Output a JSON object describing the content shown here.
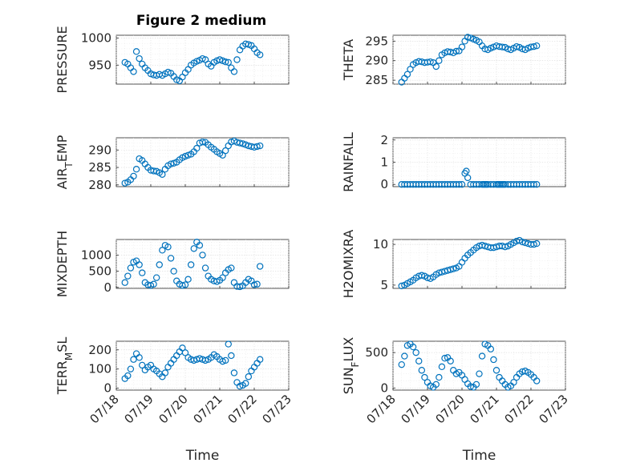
{
  "figure": {
    "title": "Figure 2 medium",
    "colors": {
      "marker": "#0072BD",
      "axis": "#262626",
      "grid": "#d9d9d9"
    }
  },
  "chart_data": [
    {
      "type": "scatter",
      "ylabel": "PRESSURE",
      "xlabel": "",
      "xlim": [
        "07/18",
        "07/23"
      ],
      "ylim": [
        915,
        1005
      ],
      "yticks": [
        950,
        1000
      ],
      "xticks": [],
      "grid": true,
      "minor_grid": true,
      "x": [
        "07/18 06:00",
        "07/18 08:00",
        "07/18 10:00",
        "07/18 12:00",
        "07/18 14:00",
        "07/18 16:00",
        "07/18 18:00",
        "07/18 20:00",
        "07/18 22:00",
        "07/19 00:00",
        "07/19 02:00",
        "07/19 04:00",
        "07/19 06:00",
        "07/19 08:00",
        "07/19 10:00",
        "07/19 12:00",
        "07/19 14:00",
        "07/19 16:00",
        "07/19 18:00",
        "07/19 20:00",
        "07/19 22:00",
        "07/20 00:00",
        "07/20 02:00",
        "07/20 04:00",
        "07/20 06:00",
        "07/20 08:00",
        "07/20 10:00",
        "07/20 12:00",
        "07/20 14:00",
        "07/20 16:00",
        "07/20 18:00",
        "07/20 20:00",
        "07/20 22:00",
        "07/21 00:00",
        "07/21 02:00",
        "07/21 04:00",
        "07/21 06:00",
        "07/21 08:00",
        "07/21 10:00",
        "07/21 12:00",
        "07/21 14:00",
        "07/21 16:00",
        "07/21 18:00",
        "07/21 20:00",
        "07/21 22:00",
        "07/22 00:00",
        "07/22 02:00",
        "07/22 04:00"
      ],
      "y": [
        955,
        952,
        945,
        938,
        975,
        962,
        952,
        945,
        940,
        934,
        932,
        931,
        933,
        931,
        934,
        937,
        935,
        929,
        923,
        921,
        928,
        936,
        942,
        950,
        954,
        957,
        959,
        962,
        960,
        952,
        948,
        955,
        958,
        960,
        958,
        956,
        955,
        945,
        938,
        960,
        978,
        985,
        989,
        988,
        986,
        980,
        973,
        969
      ]
    },
    {
      "type": "scatter",
      "ylabel": "THETA",
      "xlabel": "",
      "xlim": [
        "07/18",
        "07/23"
      ],
      "ylim": [
        284,
        296.5
      ],
      "yticks": [
        285,
        290,
        295
      ],
      "xticks": [],
      "grid": true,
      "minor_grid": true,
      "x": [
        "07/18 06:00",
        "07/18 08:00",
        "07/18 10:00",
        "07/18 12:00",
        "07/18 14:00",
        "07/18 16:00",
        "07/18 18:00",
        "07/18 20:00",
        "07/18 22:00",
        "07/19 00:00",
        "07/19 02:00",
        "07/19 04:00",
        "07/19 06:00",
        "07/19 08:00",
        "07/19 10:00",
        "07/19 12:00",
        "07/19 14:00",
        "07/19 16:00",
        "07/19 18:00",
        "07/19 20:00",
        "07/19 22:00",
        "07/20 00:00",
        "07/20 02:00",
        "07/20 04:00",
        "07/20 06:00",
        "07/20 08:00",
        "07/20 10:00",
        "07/20 12:00",
        "07/20 14:00",
        "07/20 16:00",
        "07/20 18:00",
        "07/20 20:00",
        "07/20 22:00",
        "07/21 00:00",
        "07/21 02:00",
        "07/21 04:00",
        "07/21 06:00",
        "07/21 08:00",
        "07/21 10:00",
        "07/21 12:00",
        "07/21 14:00",
        "07/21 16:00",
        "07/21 18:00",
        "07/21 20:00",
        "07/21 22:00",
        "07/22 00:00",
        "07/22 02:00",
        "07/22 04:00"
      ],
      "y": [
        284.5,
        285.5,
        286.5,
        287.8,
        289,
        289.5,
        289.8,
        289.7,
        289.5,
        289.6,
        289.7,
        289.5,
        288.5,
        290,
        291.5,
        292,
        292.3,
        292.2,
        292,
        292.4,
        292.5,
        293.5,
        295,
        296,
        295.8,
        295.5,
        295.2,
        294.8,
        293.8,
        293,
        292.8,
        293.2,
        293.5,
        293.8,
        293.6,
        293.5,
        293.4,
        293,
        292.8,
        293.2,
        293.6,
        293.4,
        293,
        292.8,
        293.2,
        293.5,
        293.6,
        293.8
      ]
    },
    {
      "type": "scatter",
      "ylabel": "AIR_TEMP",
      "xlabel": "",
      "xlim": [
        "07/18",
        "07/23"
      ],
      "ylim": [
        279.5,
        293.5
      ],
      "yticks": [
        280,
        285,
        290
      ],
      "xticks": [],
      "grid": true,
      "minor_grid": true,
      "x": [
        "07/18 06:00",
        "07/18 08:00",
        "07/18 10:00",
        "07/18 12:00",
        "07/18 14:00",
        "07/18 16:00",
        "07/18 18:00",
        "07/18 20:00",
        "07/18 22:00",
        "07/19 00:00",
        "07/19 02:00",
        "07/19 04:00",
        "07/19 06:00",
        "07/19 08:00",
        "07/19 10:00",
        "07/19 12:00",
        "07/19 14:00",
        "07/19 16:00",
        "07/19 18:00",
        "07/19 20:00",
        "07/19 22:00",
        "07/20 00:00",
        "07/20 02:00",
        "07/20 04:00",
        "07/20 06:00",
        "07/20 08:00",
        "07/20 10:00",
        "07/20 12:00",
        "07/20 14:00",
        "07/20 16:00",
        "07/20 18:00",
        "07/20 20:00",
        "07/20 22:00",
        "07/21 00:00",
        "07/21 02:00",
        "07/21 04:00",
        "07/21 06:00",
        "07/21 08:00",
        "07/21 10:00",
        "07/21 12:00",
        "07/21 14:00",
        "07/21 16:00",
        "07/21 18:00",
        "07/21 20:00",
        "07/21 22:00",
        "07/22 00:00",
        "07/22 02:00",
        "07/22 04:00"
      ],
      "y": [
        280.5,
        280.8,
        281.5,
        282.5,
        284.5,
        287.5,
        287,
        286,
        285,
        284.2,
        284,
        283.9,
        283.5,
        283,
        284.5,
        285.5,
        286,
        286.2,
        286.5,
        287.2,
        287.8,
        288.2,
        288.5,
        288.8,
        289.5,
        290.5,
        292,
        292.3,
        292.2,
        291.5,
        290.8,
        290.2,
        289.5,
        289,
        288.5,
        289.8,
        291.2,
        292.3,
        292.6,
        292.2,
        292,
        291.8,
        291.5,
        291.2,
        291,
        290.8,
        291,
        291.2
      ]
    },
    {
      "type": "scatter",
      "ylabel": "RAINFALL",
      "xlabel": "",
      "xlim": [
        "07/18",
        "07/23"
      ],
      "ylim": [
        -0.1,
        2.1
      ],
      "yticks": [
        0,
        1,
        2
      ],
      "xticks": [],
      "grid": true,
      "minor_grid": true,
      "x": [
        "07/18 06:00",
        "07/18 08:00",
        "07/18 10:00",
        "07/18 12:00",
        "07/18 14:00",
        "07/18 16:00",
        "07/18 18:00",
        "07/18 20:00",
        "07/18 22:00",
        "07/19 00:00",
        "07/19 02:00",
        "07/19 04:00",
        "07/19 06:00",
        "07/19 08:00",
        "07/19 10:00",
        "07/19 12:00",
        "07/19 14:00",
        "07/19 16:00",
        "07/19 18:00",
        "07/19 20:00",
        "07/19 22:00",
        "07/20 00:00",
        "07/20 02:00",
        "07/20 03:00",
        "07/20 04:00",
        "07/20 06:00",
        "07/20 08:00",
        "07/20 10:00",
        "07/20 12:00",
        "07/20 14:00",
        "07/20 15:00",
        "07/20 16:00",
        "07/20 17:00",
        "07/20 18:00",
        "07/20 20:00",
        "07/20 22:00",
        "07/21 00:00",
        "07/21 01:00",
        "07/21 02:00",
        "07/21 03:00",
        "07/21 04:00",
        "07/21 05:00",
        "07/21 06:00",
        "07/21 08:00",
        "07/21 10:00",
        "07/21 12:00",
        "07/21 14:00",
        "07/21 16:00",
        "07/21 18:00",
        "07/21 20:00",
        "07/21 22:00",
        "07/22 00:00",
        "07/22 02:00",
        "07/22 04:00"
      ],
      "y": [
        0,
        0,
        0,
        0,
        0,
        0,
        0,
        0,
        0,
        0,
        0,
        0,
        0,
        0,
        0,
        0,
        0,
        0,
        0,
        0,
        0,
        0,
        0.5,
        0.6,
        0.3,
        0,
        0,
        0,
        0,
        0,
        0,
        0,
        0,
        0,
        0,
        0,
        0,
        0,
        0,
        0,
        0,
        0,
        0,
        0,
        0,
        0,
        0,
        0,
        0,
        0,
        0,
        0,
        0,
        0
      ]
    },
    {
      "type": "scatter",
      "ylabel": "MIXDEPTH",
      "xlabel": "",
      "xlim": [
        "07/18",
        "07/23"
      ],
      "ylim": [
        -30,
        1480
      ],
      "yticks": [
        0,
        500,
        1000
      ],
      "xticks": [],
      "grid": true,
      "minor_grid": true,
      "x": [
        "07/18 06:00",
        "07/18 08:00",
        "07/18 10:00",
        "07/18 12:00",
        "07/18 14:00",
        "07/18 16:00",
        "07/18 18:00",
        "07/18 20:00",
        "07/18 22:00",
        "07/19 00:00",
        "07/19 02:00",
        "07/19 04:00",
        "07/19 06:00",
        "07/19 08:00",
        "07/19 10:00",
        "07/19 12:00",
        "07/19 14:00",
        "07/19 16:00",
        "07/19 18:00",
        "07/19 20:00",
        "07/19 22:00",
        "07/20 00:00",
        "07/20 02:00",
        "07/20 04:00",
        "07/20 06:00",
        "07/20 08:00",
        "07/20 10:00",
        "07/20 12:00",
        "07/20 14:00",
        "07/20 16:00",
        "07/20 18:00",
        "07/20 20:00",
        "07/20 22:00",
        "07/21 00:00",
        "07/21 02:00",
        "07/21 04:00",
        "07/21 06:00",
        "07/21 08:00",
        "07/21 10:00",
        "07/21 12:00",
        "07/21 14:00",
        "07/21 16:00",
        "07/21 18:00",
        "07/21 20:00",
        "07/21 22:00",
        "07/22 00:00",
        "07/22 02:00",
        "07/22 04:00"
      ],
      "y": [
        150,
        350,
        600,
        780,
        820,
        700,
        450,
        150,
        80,
        60,
        100,
        300,
        700,
        1150,
        1300,
        1250,
        900,
        500,
        200,
        100,
        60,
        80,
        250,
        700,
        1200,
        1400,
        1300,
        1000,
        600,
        350,
        250,
        200,
        180,
        220,
        300,
        450,
        550,
        600,
        150,
        30,
        20,
        50,
        150,
        250,
        200,
        80,
        100,
        650
      ]
    },
    {
      "type": "scatter",
      "ylabel": "H2OMIXRA",
      "xlabel": "",
      "xlim": [
        "07/18",
        "07/23"
      ],
      "ylim": [
        4.6,
        10.6
      ],
      "yticks": [
        5,
        10
      ],
      "xticks": [],
      "grid": true,
      "minor_grid": true,
      "x": [
        "07/18 06:00",
        "07/18 08:00",
        "07/18 10:00",
        "07/18 12:00",
        "07/18 14:00",
        "07/18 16:00",
        "07/18 18:00",
        "07/18 20:00",
        "07/18 22:00",
        "07/19 00:00",
        "07/19 02:00",
        "07/19 04:00",
        "07/19 06:00",
        "07/19 08:00",
        "07/19 10:00",
        "07/19 12:00",
        "07/19 14:00",
        "07/19 16:00",
        "07/19 18:00",
        "07/19 20:00",
        "07/19 22:00",
        "07/20 00:00",
        "07/20 02:00",
        "07/20 04:00",
        "07/20 06:00",
        "07/20 08:00",
        "07/20 10:00",
        "07/20 12:00",
        "07/20 14:00",
        "07/20 16:00",
        "07/20 18:00",
        "07/20 20:00",
        "07/20 22:00",
        "07/21 00:00",
        "07/21 02:00",
        "07/21 04:00",
        "07/21 06:00",
        "07/21 08:00",
        "07/21 10:00",
        "07/21 12:00",
        "07/21 14:00",
        "07/21 16:00",
        "07/21 18:00",
        "07/21 20:00",
        "07/21 22:00",
        "07/22 00:00",
        "07/22 02:00",
        "07/22 04:00"
      ],
      "y": [
        4.9,
        5,
        5.2,
        5.4,
        5.6,
        5.9,
        6.1,
        6.2,
        6.1,
        5.9,
        5.8,
        6,
        6.3,
        6.5,
        6.6,
        6.7,
        6.8,
        6.9,
        7,
        7.1,
        7.3,
        7.8,
        8.3,
        8.7,
        9.0,
        9.3,
        9.6,
        9.8,
        9.9,
        9.8,
        9.7,
        9.6,
        9.6,
        9.7,
        9.8,
        9.8,
        9.7,
        9.8,
        10,
        10.2,
        10.4,
        10.5,
        10.3,
        10.2,
        10.1,
        10,
        10,
        10.1
      ]
    },
    {
      "type": "scatter",
      "ylabel": "TERR_MSL",
      "xlabel": "Time",
      "xlim": [
        "07/18",
        "07/23"
      ],
      "ylim": [
        -10,
        245
      ],
      "yticks": [
        0,
        100,
        200
      ],
      "xticks": [
        "07/18",
        "07/19",
        "07/20",
        "07/21",
        "07/22",
        "07/23"
      ],
      "grid": true,
      "minor_grid": true,
      "x": [
        "07/18 06:00",
        "07/18 08:00",
        "07/18 10:00",
        "07/18 12:00",
        "07/18 14:00",
        "07/18 16:00",
        "07/18 18:00",
        "07/18 20:00",
        "07/18 22:00",
        "07/19 00:00",
        "07/19 02:00",
        "07/19 04:00",
        "07/19 06:00",
        "07/19 08:00",
        "07/19 10:00",
        "07/19 12:00",
        "07/19 14:00",
        "07/19 16:00",
        "07/19 18:00",
        "07/19 20:00",
        "07/19 22:00",
        "07/20 00:00",
        "07/20 02:00",
        "07/20 04:00",
        "07/20 06:00",
        "07/20 08:00",
        "07/20 10:00",
        "07/20 12:00",
        "07/20 14:00",
        "07/20 16:00",
        "07/20 18:00",
        "07/20 20:00",
        "07/20 22:00",
        "07/21 00:00",
        "07/21 02:00",
        "07/21 04:00",
        "07/21 06:00",
        "07/21 08:00",
        "07/21 10:00",
        "07/21 12:00",
        "07/21 14:00",
        "07/21 16:00",
        "07/21 18:00",
        "07/21 20:00",
        "07/21 22:00",
        "07/22 00:00",
        "07/22 02:00",
        "07/22 04:00"
      ],
      "y": [
        50,
        65,
        100,
        150,
        180,
        160,
        120,
        95,
        110,
        120,
        100,
        90,
        75,
        60,
        80,
        110,
        130,
        150,
        170,
        190,
        210,
        185,
        160,
        150,
        145,
        150,
        155,
        150,
        145,
        150,
        160,
        175,
        165,
        150,
        140,
        145,
        230,
        170,
        80,
        30,
        10,
        15,
        25,
        60,
        90,
        110,
        130,
        150
      ]
    },
    {
      "type": "scatter",
      "ylabel": "SUN_FLUX",
      "xlabel": "Time",
      "xlim": [
        "07/18",
        "07/23"
      ],
      "ylim": [
        -30,
        660
      ],
      "yticks": [
        0,
        500
      ],
      "xticks": [
        "07/18",
        "07/19",
        "07/20",
        "07/21",
        "07/22",
        "07/23"
      ],
      "grid": true,
      "minor_grid": true,
      "x": [
        "07/18 06:00",
        "07/18 08:00",
        "07/18 10:00",
        "07/18 12:00",
        "07/18 14:00",
        "07/18 16:00",
        "07/18 18:00",
        "07/18 20:00",
        "07/18 22:00",
        "07/19 00:00",
        "07/19 02:00",
        "07/19 04:00",
        "07/19 06:00",
        "07/19 08:00",
        "07/19 10:00",
        "07/19 12:00",
        "07/19 14:00",
        "07/19 16:00",
        "07/19 18:00",
        "07/19 20:00",
        "07/19 22:00",
        "07/20 00:00",
        "07/20 02:00",
        "07/20 04:00",
        "07/20 06:00",
        "07/20 08:00",
        "07/20 10:00",
        "07/20 12:00",
        "07/20 14:00",
        "07/20 16:00",
        "07/20 18:00",
        "07/20 20:00",
        "07/20 22:00",
        "07/21 00:00",
        "07/21 02:00",
        "07/21 04:00",
        "07/21 06:00",
        "07/21 08:00",
        "07/21 10:00",
        "07/21 12:00",
        "07/21 14:00",
        "07/21 16:00",
        "07/21 18:00",
        "07/21 20:00",
        "07/21 22:00",
        "07/22 00:00",
        "07/22 02:00",
        "07/22 04:00"
      ],
      "y": [
        330,
        450,
        600,
        620,
        580,
        500,
        380,
        250,
        150,
        80,
        30,
        10,
        50,
        150,
        300,
        420,
        430,
        380,
        250,
        200,
        220,
        180,
        120,
        60,
        20,
        10,
        50,
        200,
        450,
        620,
        600,
        550,
        400,
        250,
        150,
        100,
        50,
        10,
        30,
        80,
        150,
        200,
        230,
        240,
        220,
        190,
        150,
        100
      ]
    }
  ]
}
